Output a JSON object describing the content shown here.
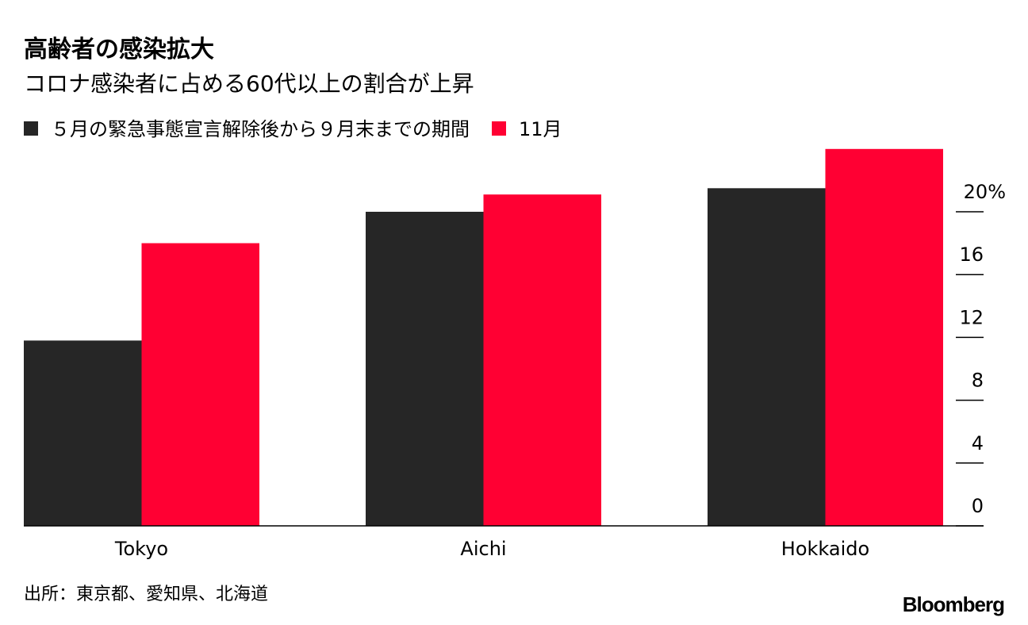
{
  "chart_data": {
    "type": "bar",
    "title": "高齢者の感染拡大",
    "subtitle": "コロナ感染者に占める60代以上の割合が上昇",
    "categories": [
      "Tokyo",
      "Aichi",
      "Hokkaido"
    ],
    "series": [
      {
        "name": "５月の緊急事態宣言解除後から９月末までの期間",
        "color": "#262626",
        "values": [
          11.8,
          20.0,
          21.5
        ]
      },
      {
        "name": "11月",
        "color": "#ff0033",
        "values": [
          18.0,
          21.1,
          24.0
        ]
      }
    ],
    "ylim": [
      0,
      24
    ],
    "yticks": [
      0,
      4,
      8,
      12,
      16,
      {
        "value": 20,
        "label": "20%"
      }
    ],
    "source": "出所：東京都、愛知県、北海道",
    "logo": "Bloomberg"
  }
}
